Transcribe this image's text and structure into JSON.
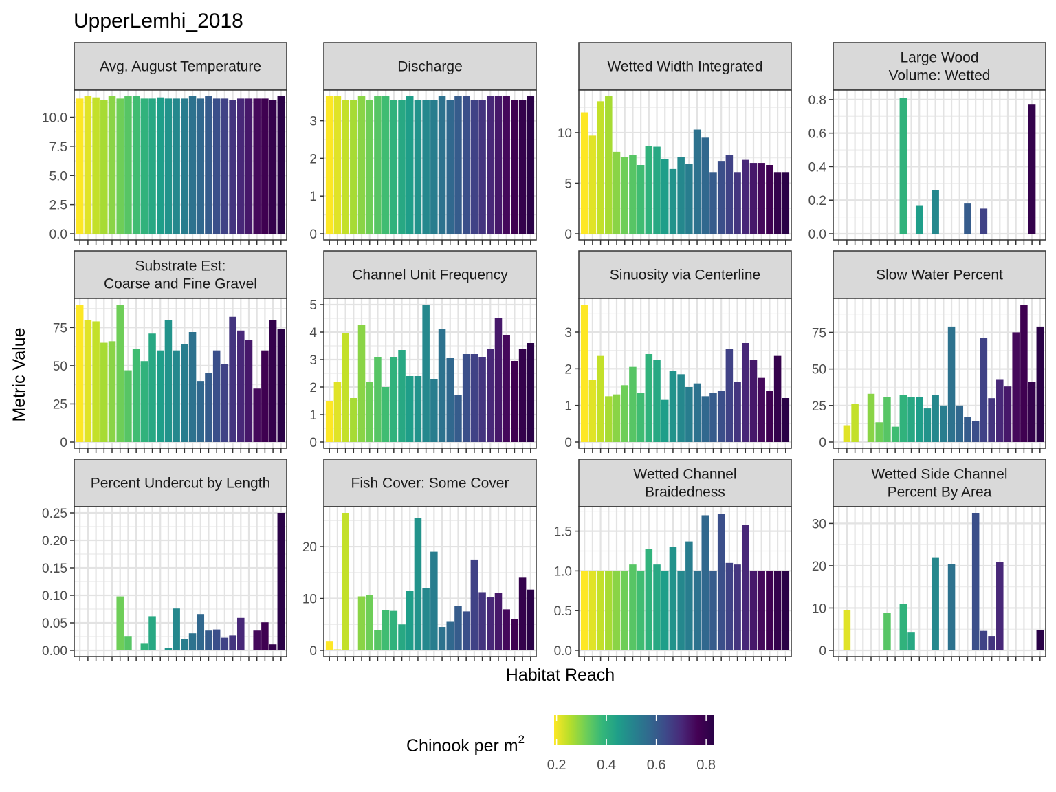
{
  "chart_data": {
    "type": "bar",
    "title": "UpperLemhi_2018",
    "xlabel": "Habitat Reach",
    "ylabel": "Metric Value",
    "grid": true,
    "legend": {
      "position": "bottom",
      "title_main": "Chinook per m",
      "title_sup": "2",
      "range": [
        0.19,
        0.83
      ],
      "ticks": [
        0.2,
        0.4,
        0.6,
        0.8
      ],
      "tick_labels": [
        "0.2",
        "0.4",
        "0.6",
        "0.8"
      ]
    },
    "colors": [
      "#fde725",
      "#b5de2b",
      "#6ece58",
      "#35b779",
      "#1f9e89",
      "#26828e",
      "#31688e",
      "#3e4989",
      "#482878",
      "#440154",
      "#2a0247"
    ],
    "n_reaches": 26,
    "panels": [
      {
        "title": [
          "Avg. August Temperature"
        ],
        "ylim": [
          0,
          11.8
        ],
        "yticks": [
          0,
          2.5,
          5,
          7.5,
          10
        ],
        "ytick_labels": [
          "0.0",
          "2.5",
          "5.0",
          "7.5",
          "10.0"
        ],
        "values": [
          11.6,
          11.8,
          11.7,
          11.5,
          11.8,
          11.6,
          11.8,
          11.8,
          11.6,
          11.6,
          11.7,
          11.6,
          11.6,
          11.6,
          11.8,
          11.6,
          11.8,
          11.6,
          11.6,
          11.5,
          11.6,
          11.6,
          11.6,
          11.6,
          11.5,
          11.8
        ]
      },
      {
        "title": [
          "Discharge"
        ],
        "ylim": [
          0,
          3.65
        ],
        "yticks": [
          0,
          1,
          2,
          3
        ],
        "ytick_labels": [
          "0",
          "1",
          "2",
          "3"
        ],
        "values": [
          3.65,
          3.65,
          3.55,
          3.55,
          3.65,
          3.55,
          3.65,
          3.65,
          3.55,
          3.55,
          3.65,
          3.55,
          3.55,
          3.55,
          3.65,
          3.55,
          3.65,
          3.65,
          3.55,
          3.55,
          3.65,
          3.65,
          3.65,
          3.55,
          3.55,
          3.65
        ]
      },
      {
        "title": [
          "Wetted Width Integrated"
        ],
        "ylim": [
          0,
          13.6
        ],
        "yticks": [
          0,
          5,
          10
        ],
        "ytick_labels": [
          "0",
          "5",
          "10"
        ],
        "values": [
          12.0,
          9.7,
          13.1,
          13.6,
          8.1,
          7.6,
          7.8,
          6.8,
          8.7,
          8.6,
          7.4,
          6.4,
          7.6,
          6.9,
          10.3,
          9.5,
          6.1,
          7.2,
          7.8,
          6.1,
          7.3,
          7.0,
          7.0,
          6.8,
          6.1,
          6.1
        ]
      },
      {
        "title": [
          "Large Wood",
          "Volume: Wetted"
        ],
        "ylim": [
          0,
          0.82
        ],
        "yticks": [
          0,
          0.2,
          0.4,
          0.6,
          0.8
        ],
        "ytick_labels": [
          "0.0",
          "0.2",
          "0.4",
          "0.6",
          "0.8"
        ],
        "values": [
          0,
          0,
          0,
          0,
          0,
          0,
          0,
          0,
          0.81,
          0,
          0.17,
          0,
          0.26,
          0,
          0,
          0,
          0.18,
          0,
          0.15,
          0,
          0,
          0,
          0,
          0,
          0.77,
          0
        ]
      },
      {
        "title": [
          "Substrate Est:",
          "Coarse and Fine Gravel"
        ],
        "ylim": [
          0,
          90
        ],
        "yticks": [
          0,
          25,
          50,
          75
        ],
        "ytick_labels": [
          "0",
          "25",
          "50",
          "75"
        ],
        "values": [
          90,
          80,
          79,
          65,
          66,
          90,
          47,
          61,
          53,
          71,
          60,
          80,
          60,
          64,
          72,
          40,
          45,
          60,
          51,
          82,
          73,
          67,
          35,
          60,
          80,
          74
        ]
      },
      {
        "title": [
          "Channel Unit Frequency"
        ],
        "ylim": [
          0,
          5.0
        ],
        "yticks": [
          0,
          1,
          2,
          3,
          4,
          5
        ],
        "ytick_labels": [
          "0",
          "1",
          "2",
          "3",
          "4",
          "5"
        ],
        "values": [
          1.5,
          2.2,
          3.95,
          1.6,
          4.25,
          2.2,
          3.1,
          2.0,
          3.1,
          3.35,
          2.4,
          2.4,
          5.0,
          2.3,
          4.1,
          3.05,
          1.7,
          3.2,
          3.2,
          3.1,
          3.4,
          4.5,
          3.9,
          2.95,
          3.4,
          3.6
        ]
      },
      {
        "title": [
          "Sinuosity via Centerline"
        ],
        "ylim": [
          0,
          3.75
        ],
        "yticks": [
          0,
          1,
          2,
          3
        ],
        "ytick_labels": [
          "0",
          "1",
          "2",
          "3"
        ],
        "values": [
          3.75,
          1.7,
          2.35,
          1.25,
          1.3,
          1.55,
          2.05,
          1.35,
          2.4,
          2.25,
          1.15,
          1.95,
          1.85,
          1.5,
          1.6,
          1.25,
          1.35,
          1.4,
          2.55,
          1.65,
          2.7,
          2.25,
          1.75,
          1.4,
          2.35,
          1.2
        ]
      },
      {
        "title": [
          "Slow Water Percent"
        ],
        "ylim": [
          0,
          94
        ],
        "yticks": [
          0,
          25,
          50,
          75
        ],
        "ytick_labels": [
          "0",
          "25",
          "50",
          "75"
        ],
        "values": [
          0,
          11.5,
          26,
          0,
          33,
          13.5,
          31,
          10.5,
          32,
          31,
          31,
          23,
          32,
          25,
          79,
          25,
          17,
          14.5,
          71,
          30,
          43,
          38,
          75,
          94,
          41,
          79
        ]
      },
      {
        "title": [
          "Percent Undercut by Length"
        ],
        "ylim": [
          0,
          0.25
        ],
        "yticks": [
          0,
          0.05,
          0.1,
          0.15,
          0.2,
          0.25
        ],
        "ytick_labels": [
          "0.00",
          "0.05",
          "0.10",
          "0.15",
          "0.20",
          "0.25"
        ],
        "values": [
          0,
          0,
          0,
          0,
          0,
          0.098,
          0.026,
          0,
          0.012,
          0.062,
          0,
          0.005,
          0.076,
          0.021,
          0.031,
          0.066,
          0.036,
          0.038,
          0.023,
          0.027,
          0.059,
          0,
          0.036,
          0.051,
          0.011,
          0.25
        ]
      },
      {
        "title": [
          "Fish Cover: Some Cover"
        ],
        "ylim": [
          0,
          26.5
        ],
        "yticks": [
          0,
          10,
          20
        ],
        "ytick_labels": [
          "0",
          "10",
          "20"
        ],
        "values": [
          1.7,
          0.2,
          26.5,
          0,
          10.4,
          10.7,
          3.9,
          7.8,
          7.6,
          5.0,
          11.5,
          25.5,
          12.0,
          19.0,
          4.5,
          5.5,
          8.6,
          7.5,
          17.5,
          11.2,
          10.2,
          11.0,
          7.9,
          6.0,
          14.0,
          11.7
        ]
      },
      {
        "title": [
          "Wetted Channel",
          "Braidedness"
        ],
        "ylim": [
          0,
          1.73
        ],
        "yticks": [
          0,
          0.5,
          1,
          1.5
        ],
        "ytick_labels": [
          "0.0",
          "0.5",
          "1.0",
          "1.5"
        ],
        "values": [
          1.0,
          1.0,
          1.0,
          1.0,
          1.0,
          1.0,
          1.08,
          1.0,
          1.28,
          1.08,
          1.0,
          1.3,
          1.0,
          1.37,
          1.0,
          1.7,
          1.0,
          1.72,
          1.1,
          1.08,
          1.58,
          1.0,
          1.0,
          1.0,
          1.0,
          1.0
        ]
      },
      {
        "title": [
          "Wetted Side Channel",
          "Percent By Area"
        ],
        "ylim": [
          0,
          32.5
        ],
        "yticks": [
          0,
          10,
          20,
          30
        ],
        "ytick_labels": [
          "0",
          "10",
          "20",
          "30"
        ],
        "values": [
          0,
          9.5,
          0,
          0,
          0,
          0,
          8.8,
          0,
          11.0,
          4.2,
          0,
          0,
          22.0,
          0,
          20.4,
          0,
          0,
          32.5,
          4.6,
          3.4,
          20.8,
          0,
          0,
          0,
          0,
          4.8
        ]
      }
    ]
  }
}
